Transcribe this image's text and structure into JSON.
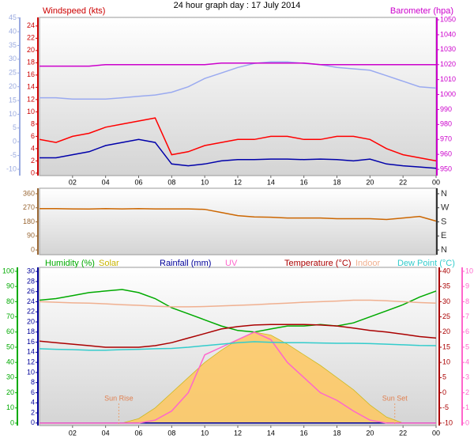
{
  "chart_data": [
    {
      "type": "line",
      "title": "24 hour graph day : 17 July 2014",
      "ylabel": "Windspeed (kts)",
      "y2label": "Barometer (hpa)",
      "x": [
        0,
        1,
        2,
        3,
        4,
        5,
        6,
        7,
        8,
        9,
        10,
        11,
        12,
        13,
        14,
        15,
        16,
        17,
        18,
        19,
        20,
        21,
        22,
        23,
        24
      ],
      "xlim": [
        0,
        24
      ],
      "xticks": [
        {
          "value": 2,
          "label": "02"
        },
        {
          "value": 4,
          "label": "04"
        },
        {
          "value": 6,
          "label": "06"
        },
        {
          "value": 8,
          "label": "08"
        },
        10,
        12,
        14,
        16,
        18,
        20,
        22,
        {
          "value": 24,
          "label": "00"
        }
      ],
      "ylim": [
        -0.4,
        25.4
      ],
      "yticks": [
        0,
        2,
        4,
        6,
        8,
        10,
        12,
        14,
        16,
        18,
        20,
        22,
        24
      ],
      "ycolor": "#cc0000",
      "y3lim": [
        -12.3,
        45.2
      ],
      "y3ticks": [
        -10,
        -5,
        0,
        5,
        10,
        15,
        20,
        25,
        30,
        35,
        40,
        45
      ],
      "y3color": "#9aaae0",
      "y2lim": [
        945.8,
        1051.6
      ],
      "y2ticks": [
        950,
        960,
        970,
        980,
        990,
        1000,
        1010,
        1020,
        1030,
        1040,
        1050
      ],
      "y2color": "#cc00cc",
      "series": [
        {
          "color": "#9aaaf0",
          "axis": "y3",
          "values": [
            16,
            16,
            15.5,
            15.5,
            15.5,
            16,
            16.5,
            17,
            18,
            20,
            23,
            25,
            27,
            28.5,
            29,
            29,
            28.5,
            28,
            27,
            26.5,
            26,
            24,
            22,
            20,
            19.5
          ]
        },
        {
          "color": "#cc00cc",
          "axis": "y2",
          "values": [
            1019,
            1019,
            1019,
            1019,
            1020,
            1020,
            1020,
            1020,
            1020,
            1020,
            1020,
            1021,
            1021,
            1021,
            1021,
            1021,
            1021,
            1020,
            1020,
            1020,
            1020,
            1020,
            1020,
            1020,
            1020
          ]
        },
        {
          "color": "#ff0000",
          "values": [
            5.5,
            5,
            6,
            6.5,
            7.5,
            8,
            8.5,
            9,
            3,
            3.5,
            4.5,
            5,
            5.5,
            5.5,
            6,
            6,
            5.5,
            5.5,
            6,
            6,
            5.5,
            4,
            3,
            2.5,
            2
          ]
        },
        {
          "color": "#0000aa",
          "values": [
            2.5,
            2.5,
            3,
            3.5,
            4.5,
            5,
            5.5,
            5,
            1.5,
            1.2,
            1.5,
            2,
            2.2,
            2.2,
            2.3,
            2.3,
            2.2,
            2.3,
            2.2,
            2,
            2.3,
            1.5,
            1.2,
            1,
            0.8
          ]
        }
      ]
    },
    {
      "type": "line",
      "x": [
        0,
        1,
        2,
        3,
        4,
        5,
        6,
        7,
        8,
        9,
        10,
        11,
        12,
        13,
        14,
        15,
        16,
        17,
        18,
        19,
        20,
        21,
        22,
        23,
        24
      ],
      "xlim": [
        0,
        24
      ],
      "ylim": [
        -30,
        395
      ],
      "yticks": [
        0,
        90,
        180,
        270,
        360
      ],
      "ycolor": "#996633",
      "y2lim": [
        -30,
        395
      ],
      "y2ticks": [
        {
          "value": 0,
          "label": "N"
        },
        {
          "value": 90,
          "label": "E"
        },
        {
          "value": 180,
          "label": "S"
        },
        {
          "value": 270,
          "label": "W"
        },
        {
          "value": 360,
          "label": "N"
        }
      ],
      "y2color": "#333333",
      "series": [
        {
          "color": "#cc6600",
          "values": [
            265,
            265,
            263,
            262,
            265,
            263,
            265,
            263,
            263,
            263,
            260,
            240,
            220,
            212,
            210,
            205,
            205,
            205,
            200,
            200,
            200,
            195,
            205,
            215,
            185
          ]
        }
      ]
    },
    {
      "type": "line",
      "x": [
        0,
        1,
        2,
        3,
        4,
        5,
        6,
        7,
        8,
        9,
        10,
        11,
        12,
        13,
        14,
        15,
        16,
        17,
        18,
        19,
        20,
        21,
        22,
        23,
        24
      ],
      "xlim": [
        0,
        24
      ],
      "xticks": [
        {
          "value": 2,
          "label": "02"
        },
        {
          "value": 4,
          "label": "04"
        },
        {
          "value": 6,
          "label": "06"
        },
        {
          "value": 8,
          "label": "08"
        },
        10,
        12,
        14,
        16,
        18,
        20,
        22,
        {
          "value": 24,
          "label": "00"
        }
      ],
      "ylim": [
        -1.6,
        102.6
      ],
      "yticks": [
        0,
        10,
        20,
        30,
        40,
        50,
        60,
        70,
        80,
        90,
        100
      ],
      "ycolor": "#00aa00",
      "y3lim": [
        -0.5,
        30.8
      ],
      "y3ticks": [
        0,
        2,
        4,
        6,
        8,
        10,
        12,
        14,
        16,
        18,
        20,
        22,
        24,
        26,
        28,
        30
      ],
      "y3color": "#000099",
      "y2lim": [
        -10.8,
        41.3
      ],
      "y2ticks": [
        -10,
        -5,
        0,
        5,
        10,
        15,
        20,
        25,
        30,
        35,
        40
      ],
      "y2color": "#aa0000",
      "y4lim": [
        -0.16,
        10.26
      ],
      "y4ticks": [
        0,
        1,
        2,
        3,
        4,
        5,
        6,
        7,
        8,
        9,
        10
      ],
      "y4color": "#ff66cc",
      "series": [
        {
          "name": "Humidity (%)",
          "color": "#00aa00",
          "values": [
            81,
            82,
            84,
            86,
            87,
            88,
            86,
            82,
            76,
            72,
            68,
            64,
            61,
            60,
            62,
            64,
            64,
            65,
            64,
            66,
            70,
            74,
            78,
            83,
            87
          ]
        },
        {
          "name": "Solar",
          "color": "#c8b400",
          "fill": "#ffc860",
          "area": true,
          "values": [
            0,
            0,
            0,
            0,
            0,
            0,
            3,
            10,
            20,
            30,
            40,
            48,
            55,
            60,
            58,
            52,
            45,
            38,
            30,
            22,
            12,
            4,
            0,
            0,
            0
          ]
        },
        {
          "name": "Rainfall (mm)",
          "color": "#000099",
          "axis": "y3",
          "values": [
            0,
            0,
            0,
            0,
            0,
            0,
            0,
            0,
            0,
            0,
            0,
            0,
            0,
            0,
            0,
            0,
            0,
            0,
            0,
            0,
            0,
            0,
            0,
            0,
            0
          ]
        },
        {
          "name": "UV",
          "color": "#ff66cc",
          "axis": "y4",
          "values": [
            0,
            0,
            0,
            0,
            0,
            0,
            0,
            0.2,
            0.8,
            2,
            4.5,
            5,
            5.5,
            6,
            5.5,
            4,
            3,
            2,
            1.5,
            0.8,
            0.2,
            0,
            0,
            0,
            0
          ]
        },
        {
          "name": "Temperature (°C)",
          "color": "#aa0000",
          "axis": "y2",
          "values": [
            17,
            16.5,
            16,
            15.5,
            15,
            15,
            15,
            15.5,
            16.5,
            18,
            19.5,
            21,
            21.8,
            22.3,
            22.5,
            22.5,
            22.5,
            22.3,
            22,
            21.3,
            20.5,
            20,
            19.3,
            18.5,
            18
          ]
        },
        {
          "name": "Indoor",
          "color": "#f0b090",
          "axis": "y2",
          "values": [
            30,
            29.8,
            29.6,
            29.5,
            29.3,
            29,
            28.8,
            28.5,
            28.3,
            28.3,
            28.4,
            28.6,
            28.8,
            29,
            29.3,
            29.5,
            29.8,
            30,
            30.2,
            30.5,
            30.5,
            30.3,
            30,
            29.7,
            29.5
          ]
        },
        {
          "name": "Dew Point (°C)",
          "color": "#33cccc",
          "axis": "y2",
          "values": [
            14.5,
            14.3,
            14.2,
            14,
            14,
            14.2,
            14.3,
            14.5,
            14.6,
            15,
            15.5,
            16,
            16.5,
            16.8,
            16.6,
            16.5,
            16.5,
            16.4,
            16.3,
            16.3,
            16.2,
            16,
            15.8,
            15.6,
            15.5
          ]
        }
      ],
      "annotations": [
        {
          "text": "Sun Rise",
          "x": 4.8
        },
        {
          "text": "Sun Set",
          "x": 21.5
        }
      ]
    }
  ]
}
